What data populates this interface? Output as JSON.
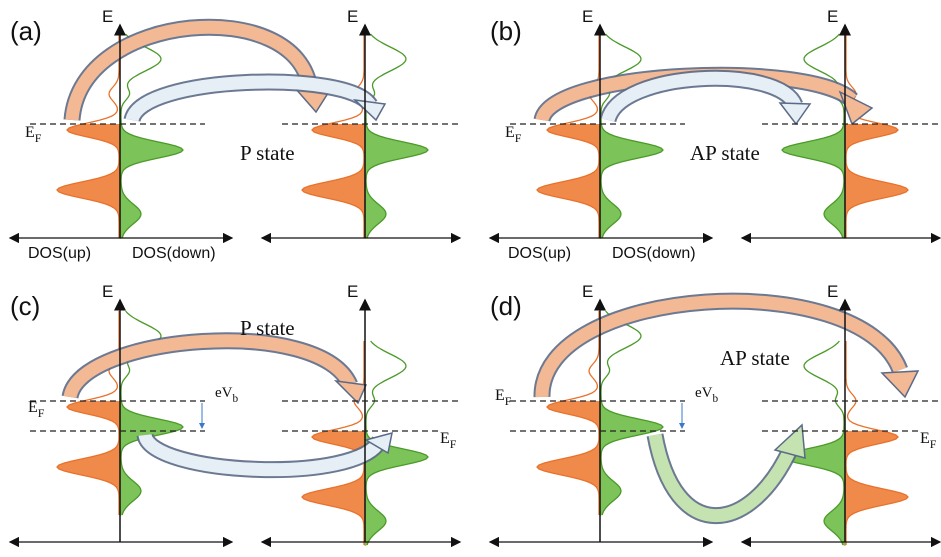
{
  "panels": [
    {
      "label": "(a)",
      "axes": [
        "E",
        "E"
      ],
      "fermi": [
        {
          "main": "E",
          "sub": "F"
        }
      ],
      "state": "P state",
      "dos": [
        "DOS(up)",
        "DOS(down)"
      ]
    },
    {
      "label": "(b)",
      "axes": [
        "E",
        "E"
      ],
      "fermi": [
        {
          "main": "E",
          "sub": "F"
        }
      ],
      "state": "AP state",
      "dos": [
        "DOS(up)",
        "DOS(down)"
      ]
    },
    {
      "label": "(c)",
      "axes": [
        "E",
        "E"
      ],
      "fermi": [
        {
          "main": "E",
          "sub": "F"
        },
        {
          "main": "E",
          "sub": "F"
        }
      ],
      "state": "P state",
      "bias": {
        "main": "eV",
        "sub": "b"
      }
    },
    {
      "label": "(d)",
      "axes": [
        "E",
        "E"
      ],
      "fermi": [
        {
          "main": "E",
          "sub": "F"
        },
        {
          "main": "E",
          "sub": "F"
        }
      ],
      "state": "AP state",
      "bias": {
        "main": "eV",
        "sub": "b"
      }
    }
  ]
}
